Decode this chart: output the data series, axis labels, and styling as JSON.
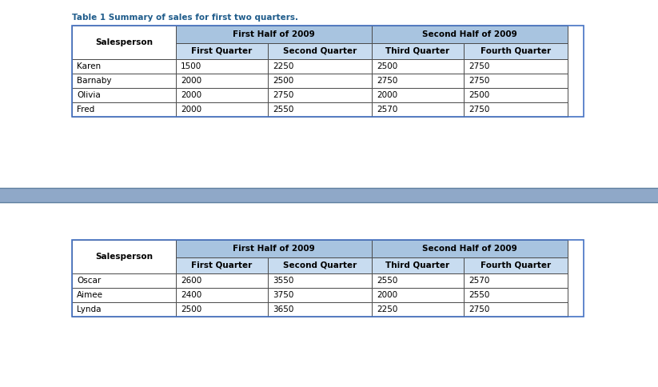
{
  "caption": "Table 1 Summary of sales for first two quarters.",
  "caption_color": "#1F5C8B",
  "caption_fontsize": 7.5,
  "bg_color": "#FFFFFF",
  "outer_border_color": "#4472C4",
  "divider_color": "#8FA8C8",
  "border_color": "#4B4B4B",
  "header1_bg": "#A8C4E0",
  "header2_bg": "#C8DCF0",
  "header_text_color": "#000000",
  "cell_bg": "#FFFFFF",
  "cell_text_color": "#000000",
  "table1": {
    "rows": [
      [
        "Karen",
        "1500",
        "2250",
        "2500",
        "2750"
      ],
      [
        "Barnaby",
        "2000",
        "2500",
        "2750",
        "2750"
      ],
      [
        "Olivia",
        "2000",
        "2750",
        "2000",
        "2500"
      ],
      [
        "Fred",
        "2000",
        "2550",
        "2570",
        "2750"
      ]
    ]
  },
  "table2": {
    "rows": [
      [
        "Oscar",
        "2600",
        "3550",
        "2550",
        "2570"
      ],
      [
        "Aimee",
        "2400",
        "3750",
        "2000",
        "2550"
      ],
      [
        "Lynda",
        "2500",
        "3650",
        "2250",
        "2750"
      ]
    ]
  }
}
